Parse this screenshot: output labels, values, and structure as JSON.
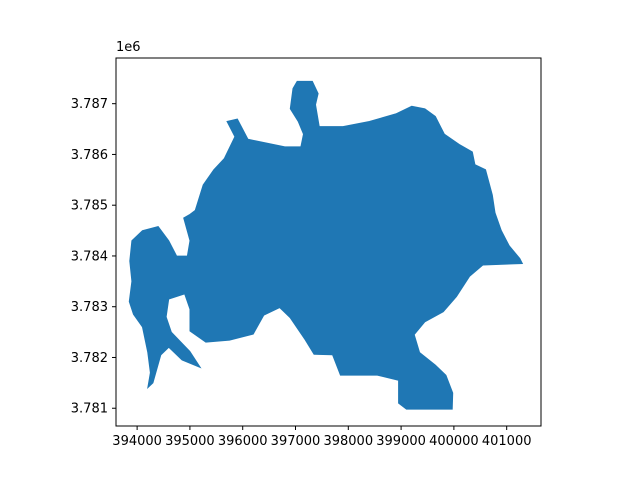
{
  "chart_data": {
    "type": "map",
    "title": "",
    "xlabel": "",
    "ylabel": "",
    "grid": false,
    "legend": "none",
    "y_offset_label": "1e6",
    "xlim": [
      393600,
      401650
    ],
    "ylim": [
      3780650,
      3787900
    ],
    "x_ticks": [
      394000,
      395000,
      396000,
      397000,
      398000,
      399000,
      400000,
      401000
    ],
    "x_tick_labels": [
      "394000",
      "395000",
      "396000",
      "397000",
      "398000",
      "399000",
      "400000",
      "401000"
    ],
    "y_ticks": [
      3781000,
      3782000,
      3783000,
      3784000,
      3785000,
      3786000,
      3787000
    ],
    "y_tick_labels": [
      "3.781",
      "3.782",
      "3.783",
      "3.784",
      "3.785",
      "3.786",
      "3.787"
    ],
    "fill_color": "#1f77b4",
    "polygon": [
      [
        397030,
        3787440
      ],
      [
        397320,
        3787440
      ],
      [
        397430,
        3787200
      ],
      [
        397380,
        3786980
      ],
      [
        397450,
        3786550
      ],
      [
        397900,
        3786550
      ],
      [
        398400,
        3786650
      ],
      [
        398900,
        3786800
      ],
      [
        399200,
        3786950
      ],
      [
        399450,
        3786900
      ],
      [
        399650,
        3786750
      ],
      [
        399820,
        3786400
      ],
      [
        400100,
        3786200
      ],
      [
        400350,
        3786050
      ],
      [
        400400,
        3785800
      ],
      [
        400600,
        3785700
      ],
      [
        400730,
        3785200
      ],
      [
        400780,
        3784850
      ],
      [
        400900,
        3784500
      ],
      [
        401050,
        3784200
      ],
      [
        401250,
        3783950
      ],
      [
        401300,
        3783850
      ],
      [
        400550,
        3783820
      ],
      [
        400300,
        3783600
      ],
      [
        400050,
        3783200
      ],
      [
        399800,
        3782900
      ],
      [
        399450,
        3782700
      ],
      [
        399250,
        3782450
      ],
      [
        399350,
        3782100
      ],
      [
        399650,
        3781850
      ],
      [
        399850,
        3781650
      ],
      [
        399980,
        3781300
      ],
      [
        399970,
        3780980
      ],
      [
        399100,
        3780980
      ],
      [
        398950,
        3781100
      ],
      [
        398950,
        3781550
      ],
      [
        398550,
        3781650
      ],
      [
        397850,
        3781650
      ],
      [
        397700,
        3782050
      ],
      [
        397350,
        3782060
      ],
      [
        397180,
        3782350
      ],
      [
        396900,
        3782780
      ],
      [
        396700,
        3782980
      ],
      [
        396400,
        3782830
      ],
      [
        396200,
        3782460
      ],
      [
        395750,
        3782340
      ],
      [
        395300,
        3782300
      ],
      [
        395000,
        3782520
      ],
      [
        395000,
        3782950
      ],
      [
        394900,
        3783250
      ],
      [
        394600,
        3783150
      ],
      [
        394550,
        3782800
      ],
      [
        394650,
        3782500
      ],
      [
        395000,
        3782120
      ],
      [
        395200,
        3781800
      ],
      [
        394850,
        3781950
      ],
      [
        394600,
        3782200
      ],
      [
        394450,
        3782050
      ],
      [
        394300,
        3781500
      ],
      [
        394200,
        3781400
      ],
      [
        394250,
        3781700
      ],
      [
        394200,
        3782100
      ],
      [
        394100,
        3782600
      ],
      [
        393930,
        3782850
      ],
      [
        393850,
        3783100
      ],
      [
        393900,
        3783500
      ],
      [
        393860,
        3783900
      ],
      [
        393900,
        3784300
      ],
      [
        394100,
        3784500
      ],
      [
        394400,
        3784580
      ],
      [
        394600,
        3784300
      ],
      [
        394750,
        3784000
      ],
      [
        394950,
        3784000
      ],
      [
        395000,
        3784300
      ],
      [
        394880,
        3784750
      ],
      [
        395000,
        3784820
      ],
      [
        395100,
        3784900
      ],
      [
        395250,
        3785400
      ],
      [
        395450,
        3785700
      ],
      [
        395650,
        3785920
      ],
      [
        395850,
        3786350
      ],
      [
        395700,
        3786650
      ],
      [
        395900,
        3786700
      ],
      [
        396100,
        3786300
      ],
      [
        396800,
        3786150
      ],
      [
        397100,
        3786150
      ],
      [
        397150,
        3786400
      ],
      [
        397050,
        3786650
      ],
      [
        396900,
        3786900
      ],
      [
        396950,
        3787300
      ]
    ]
  }
}
